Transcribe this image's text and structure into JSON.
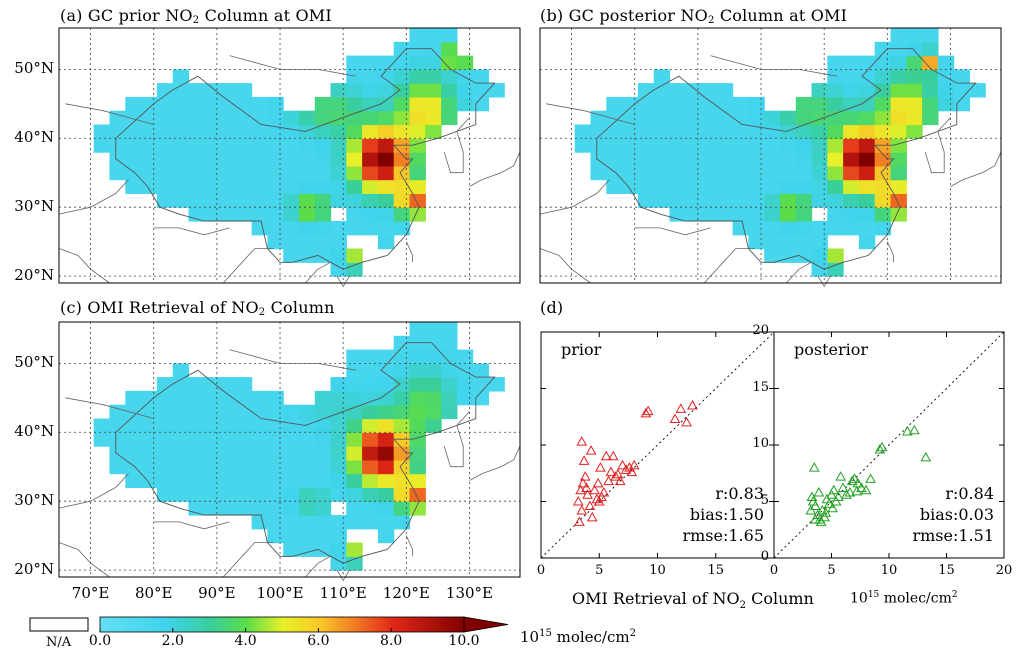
{
  "panels": {
    "a": {
      "prefix": "(a) GC prior NO",
      "sub": "2",
      "suffix": " Column at OMI"
    },
    "b": {
      "prefix": "(b) GC posterior NO",
      "sub": "2",
      "suffix": " Column at OMI"
    },
    "c": {
      "prefix": "(c) OMI Retrieval of NO",
      "sub": "2",
      "suffix": " Column"
    },
    "d": {
      "label": "(d)"
    }
  },
  "map_axes": {
    "lat_labels": [
      "20°N",
      "30°N",
      "40°N",
      "50°N"
    ],
    "lon_labels": [
      "70°E",
      "80°E",
      "90°E",
      "100°E",
      "110°E",
      "120°E",
      "130°E"
    ]
  },
  "colorbar": {
    "na_label": "N/A",
    "tick_labels": [
      "0.0",
      "2.0",
      "4.0",
      "6.0",
      "8.0",
      "10.0"
    ],
    "unit_base": "10",
    "unit_exp": "15",
    "unit_rest": " molec/cm",
    "unit_sq": "2",
    "range": [
      0,
      10
    ]
  },
  "scatter": {
    "xlabel_prefix": "OMI Retrieval of NO",
    "xlabel_sub": "2",
    "xlabel_suffix": " Column",
    "unit_base": "10",
    "unit_exp": "15",
    "unit_rest": " molec/cm",
    "unit_sq": "2"
  },
  "chart_data": [
    {
      "type": "heatmap",
      "title": "(a) GC prior NO2 Column at OMI",
      "x_range": [
        65,
        138
      ],
      "y_range": [
        19,
        56
      ],
      "colorbar_range": [
        0,
        10
      ]
    },
    {
      "type": "heatmap",
      "title": "(b) GC posterior NO2 Column at OMI",
      "x_range": [
        65,
        138
      ],
      "y_range": [
        19,
        56
      ],
      "colorbar_range": [
        0,
        10
      ]
    },
    {
      "type": "heatmap",
      "title": "(c) OMI Retrieval of NO2 Column",
      "x_range": [
        65,
        138
      ],
      "y_range": [
        19,
        56
      ],
      "colorbar_range": [
        0,
        10
      ]
    },
    {
      "type": "scatter",
      "name": "prior",
      "color": "#e02020",
      "xlim": [
        0,
        20
      ],
      "ylim": [
        0,
        20
      ],
      "x_ticks": [
        0,
        5,
        10,
        15
      ],
      "y_ticks": [
        0,
        5,
        10,
        15,
        20
      ],
      "annotations": [
        "r:0.83",
        "bias:1.50",
        "rmse:1.65"
      ],
      "x": [
        3.2,
        3.4,
        3.6,
        3.5,
        3.8,
        4.0,
        4.2,
        4.4,
        3.3,
        3.9,
        4.6,
        4.8,
        5.0,
        5.2,
        5.4,
        5.1,
        4.3,
        3.7,
        6.0,
        6.4,
        6.8,
        7.0,
        7.3,
        7.6,
        8.0,
        6.2,
        5.8,
        6.6,
        7.8,
        9.0,
        9.2,
        11.5,
        12.0,
        13.0,
        12.5,
        3.5,
        4.9,
        5.6
      ],
      "y": [
        5.0,
        6.0,
        6.6,
        10.3,
        7.2,
        5.6,
        4.6,
        3.6,
        3.2,
        6.2,
        6.0,
        5.2,
        5.0,
        5.4,
        5.8,
        8.0,
        9.5,
        8.6,
        7.6,
        7.2,
        6.8,
        8.2,
        7.8,
        8.0,
        8.2,
        9.0,
        6.8,
        7.4,
        7.6,
        12.8,
        13.0,
        12.3,
        13.2,
        13.5,
        12.0,
        4.2,
        6.6,
        9.0
      ]
    },
    {
      "type": "scatter",
      "name": "posterior",
      "color": "#20a020",
      "xlim": [
        0,
        20
      ],
      "ylim": [
        0,
        20
      ],
      "x_ticks": [
        0,
        5,
        10,
        15,
        20
      ],
      "y_ticks": [
        0,
        5,
        10,
        15,
        20
      ],
      "annotations": [
        "r:0.84",
        "bias:0.03",
        "rmse:1.51"
      ],
      "x": [
        3.2,
        3.4,
        3.6,
        3.8,
        4.0,
        4.2,
        4.4,
        3.5,
        3.9,
        4.6,
        4.8,
        5.0,
        5.2,
        5.4,
        5.6,
        6.0,
        6.3,
        6.6,
        7.0,
        7.3,
        7.6,
        8.0,
        8.4,
        6.8,
        5.8,
        4.5,
        3.6,
        3.3,
        9.2,
        9.4,
        11.6,
        12.2,
        13.2,
        7.2,
        5.1,
        4.1
      ],
      "y": [
        4.2,
        5.0,
        4.6,
        3.8,
        3.4,
        4.2,
        3.6,
        8.0,
        5.8,
        5.2,
        4.8,
        5.6,
        6.0,
        5.0,
        5.4,
        6.2,
        5.6,
        5.8,
        7.0,
        6.6,
        6.2,
        6.0,
        7.0,
        6.8,
        7.2,
        4.0,
        3.4,
        5.4,
        9.6,
        9.8,
        11.2,
        11.3,
        8.9,
        5.9,
        4.4,
        3.2
      ]
    }
  ]
}
